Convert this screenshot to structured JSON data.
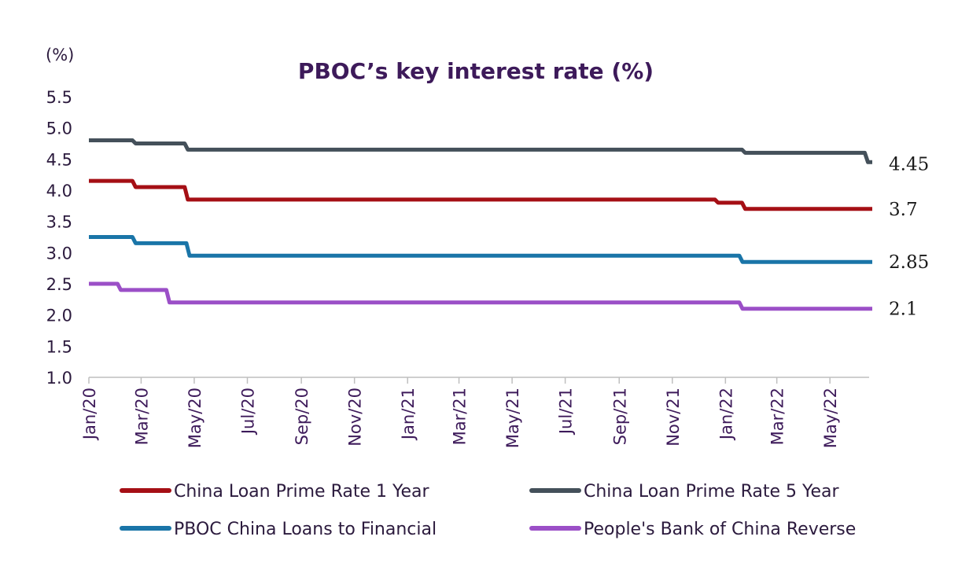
{
  "chart_data": {
    "type": "line",
    "title": "PBOC’s key interest rate (%)",
    "ylabel": "(%)",
    "xlabel": "",
    "ylim": [
      1.0,
      5.5
    ],
    "yticks": [
      "1.0",
      "1.5",
      "2.0",
      "2.5",
      "3.0",
      "3.5",
      "4.0",
      "4.5",
      "5.0",
      "5.5"
    ],
    "xlim": [
      "2020-01-01",
      "2022-06-15"
    ],
    "xticks": [
      {
        "date": "2020-01-01",
        "label": "Jan/20"
      },
      {
        "date": "2020-03-01",
        "label": "Mar/20"
      },
      {
        "date": "2020-05-01",
        "label": "May/20"
      },
      {
        "date": "2020-07-01",
        "label": "Jul/20"
      },
      {
        "date": "2020-09-01",
        "label": "Sep/20"
      },
      {
        "date": "2020-11-01",
        "label": "Nov/20"
      },
      {
        "date": "2021-01-01",
        "label": "Jan/21"
      },
      {
        "date": "2021-03-01",
        "label": "Mar/21"
      },
      {
        "date": "2021-05-01",
        "label": "May/21"
      },
      {
        "date": "2021-07-01",
        "label": "Jul/21"
      },
      {
        "date": "2021-09-01",
        "label": "Sep/21"
      },
      {
        "date": "2021-11-01",
        "label": "Nov/21"
      },
      {
        "date": "2022-01-01",
        "label": "Jan/22"
      },
      {
        "date": "2022-03-01",
        "label": "Mar/22"
      },
      {
        "date": "2022-05-01",
        "label": "May/22"
      }
    ],
    "legend_position": "bottom",
    "series": [
      {
        "name": "China Loan Prime Rate 1 Year",
        "color": "#a50f15",
        "end_label": "3.7",
        "points": [
          {
            "x": "2020-01-01",
            "y": 4.15
          },
          {
            "x": "2020-02-20",
            "y": 4.05
          },
          {
            "x": "2020-04-20",
            "y": 3.85
          },
          {
            "x": "2021-12-20",
            "y": 3.8
          },
          {
            "x": "2022-01-20",
            "y": 3.7
          },
          {
            "x": "2022-06-15",
            "y": 3.7
          }
        ]
      },
      {
        "name": "China Loan Prime Rate 5 Year",
        "color": "#44505a",
        "end_label": "4.45",
        "points": [
          {
            "x": "2020-01-01",
            "y": 4.8
          },
          {
            "x": "2020-02-20",
            "y": 4.75
          },
          {
            "x": "2020-04-20",
            "y": 4.65
          },
          {
            "x": "2022-01-20",
            "y": 4.6
          },
          {
            "x": "2022-06-10",
            "y": 4.45
          },
          {
            "x": "2022-06-15",
            "y": 4.45
          }
        ]
      },
      {
        "name": "PBOC China Loans to Financial",
        "color": "#1a75a8",
        "end_label": "2.85",
        "points": [
          {
            "x": "2020-01-01",
            "y": 3.25
          },
          {
            "x": "2020-02-20",
            "y": 3.15
          },
          {
            "x": "2020-04-22",
            "y": 2.95
          },
          {
            "x": "2022-01-17",
            "y": 2.85
          },
          {
            "x": "2022-06-15",
            "y": 2.85
          }
        ]
      },
      {
        "name": "People's Bank of China Reverse",
        "color": "#9b4fc7",
        "end_label": "2.1",
        "points": [
          {
            "x": "2020-01-01",
            "y": 2.5
          },
          {
            "x": "2020-02-03",
            "y": 2.4
          },
          {
            "x": "2020-03-30",
            "y": 2.2
          },
          {
            "x": "2022-01-17",
            "y": 2.1
          },
          {
            "x": "2022-06-15",
            "y": 2.1
          }
        ]
      }
    ]
  }
}
